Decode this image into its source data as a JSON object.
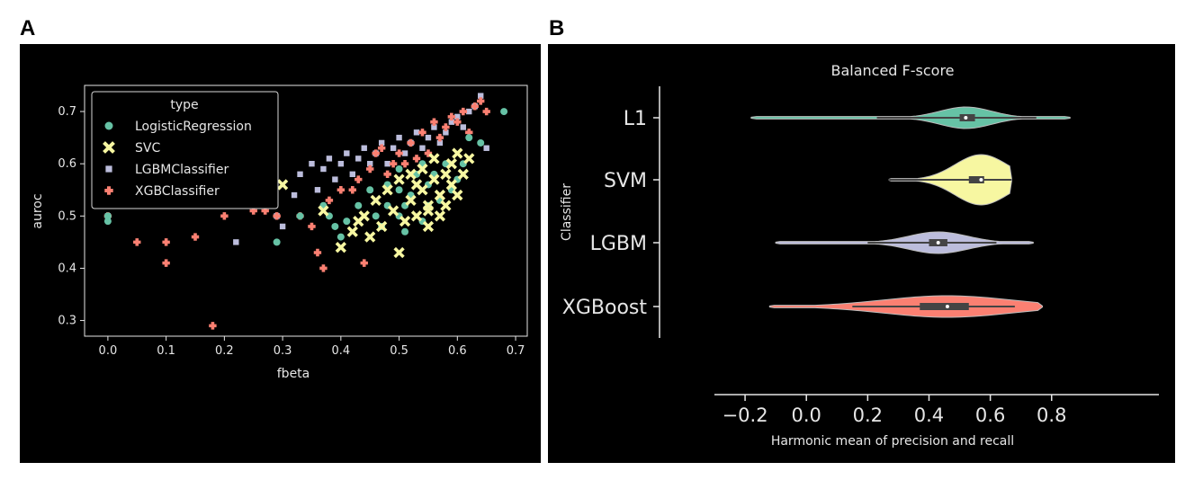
{
  "panel_labels": {
    "a": "A",
    "b": "B"
  },
  "colors": {
    "background": "#000000",
    "axis": "#e6e6e6",
    "LogisticRegression": "#66c2a5",
    "SVC": "#f7f7a1",
    "LGBMClassifier": "#bcbddc",
    "XGBClassifier": "#fb8072"
  },
  "chart_data": [
    {
      "type": "scatter",
      "xlabel": "fbeta",
      "ylabel": "auroc",
      "xlim": [
        -0.04,
        0.72
      ],
      "ylim": [
        0.27,
        0.75
      ],
      "xticks": [
        "0.0",
        "0.1",
        "0.2",
        "0.3",
        "0.4",
        "0.5",
        "0.6",
        "0.7"
      ],
      "yticks": [
        "0.3",
        "0.4",
        "0.5",
        "0.6",
        "0.7"
      ],
      "legend": {
        "title": "type",
        "position": "top-left"
      },
      "series": [
        {
          "name": "LogisticRegression",
          "marker": "circle",
          "points": [
            [
              0.0,
              0.49
            ],
            [
              0.0,
              0.5
            ],
            [
              0.06,
              0.53
            ],
            [
              0.29,
              0.45
            ],
            [
              0.33,
              0.5
            ],
            [
              0.37,
              0.52
            ],
            [
              0.38,
              0.5
            ],
            [
              0.39,
              0.48
            ],
            [
              0.4,
              0.46
            ],
            [
              0.41,
              0.49
            ],
            [
              0.43,
              0.52
            ],
            [
              0.45,
              0.55
            ],
            [
              0.46,
              0.5
            ],
            [
              0.47,
              0.48
            ],
            [
              0.48,
              0.52
            ],
            [
              0.48,
              0.56
            ],
            [
              0.5,
              0.5
            ],
            [
              0.5,
              0.55
            ],
            [
              0.5,
              0.59
            ],
            [
              0.51,
              0.47
            ],
            [
              0.51,
              0.52
            ],
            [
              0.52,
              0.54
            ],
            [
              0.53,
              0.58
            ],
            [
              0.54,
              0.49
            ],
            [
              0.54,
              0.6
            ],
            [
              0.55,
              0.52
            ],
            [
              0.55,
              0.56
            ],
            [
              0.56,
              0.58
            ],
            [
              0.57,
              0.53
            ],
            [
              0.58,
              0.6
            ],
            [
              0.59,
              0.55
            ],
            [
              0.6,
              0.57
            ],
            [
              0.61,
              0.6
            ],
            [
              0.62,
              0.65
            ],
            [
              0.64,
              0.64
            ],
            [
              0.68,
              0.7
            ]
          ]
        },
        {
          "name": "SVC",
          "marker": "x",
          "points": [
            [
              0.1,
              0.53
            ],
            [
              0.3,
              0.56
            ],
            [
              0.37,
              0.51
            ],
            [
              0.4,
              0.44
            ],
            [
              0.42,
              0.47
            ],
            [
              0.43,
              0.49
            ],
            [
              0.44,
              0.5
            ],
            [
              0.45,
              0.46
            ],
            [
              0.46,
              0.53
            ],
            [
              0.47,
              0.48
            ],
            [
              0.48,
              0.55
            ],
            [
              0.49,
              0.51
            ],
            [
              0.5,
              0.43
            ],
            [
              0.5,
              0.57
            ],
            [
              0.51,
              0.49
            ],
            [
              0.52,
              0.53
            ],
            [
              0.52,
              0.58
            ],
            [
              0.53,
              0.5
            ],
            [
              0.54,
              0.55
            ],
            [
              0.54,
              0.59
            ],
            [
              0.55,
              0.48
            ],
            [
              0.55,
              0.52
            ],
            [
              0.56,
              0.57
            ],
            [
              0.56,
              0.61
            ],
            [
              0.57,
              0.5
            ],
            [
              0.57,
              0.54
            ],
            [
              0.58,
              0.58
            ],
            [
              0.58,
              0.52
            ],
            [
              0.59,
              0.6
            ],
            [
              0.59,
              0.56
            ],
            [
              0.6,
              0.62
            ],
            [
              0.6,
              0.54
            ],
            [
              0.61,
              0.58
            ],
            [
              0.62,
              0.61
            ],
            [
              0.55,
              0.51
            ],
            [
              0.53,
              0.56
            ]
          ]
        },
        {
          "name": "LGBMClassifier",
          "marker": "square",
          "points": [
            [
              0.0,
              0.5
            ],
            [
              0.06,
              0.55
            ],
            [
              0.16,
              0.52
            ],
            [
              0.22,
              0.45
            ],
            [
              0.26,
              0.53
            ],
            [
              0.27,
              0.56
            ],
            [
              0.29,
              0.5
            ],
            [
              0.3,
              0.48
            ],
            [
              0.32,
              0.54
            ],
            [
              0.33,
              0.58
            ],
            [
              0.35,
              0.6
            ],
            [
              0.36,
              0.55
            ],
            [
              0.37,
              0.59
            ],
            [
              0.38,
              0.61
            ],
            [
              0.39,
              0.57
            ],
            [
              0.4,
              0.6
            ],
            [
              0.41,
              0.62
            ],
            [
              0.42,
              0.58
            ],
            [
              0.43,
              0.61
            ],
            [
              0.44,
              0.63
            ],
            [
              0.45,
              0.6
            ],
            [
              0.46,
              0.62
            ],
            [
              0.47,
              0.64
            ],
            [
              0.48,
              0.6
            ],
            [
              0.49,
              0.63
            ],
            [
              0.5,
              0.65
            ],
            [
              0.51,
              0.62
            ],
            [
              0.52,
              0.64
            ],
            [
              0.53,
              0.66
            ],
            [
              0.54,
              0.63
            ],
            [
              0.55,
              0.65
            ],
            [
              0.56,
              0.67
            ],
            [
              0.57,
              0.64
            ],
            [
              0.58,
              0.66
            ],
            [
              0.59,
              0.68
            ],
            [
              0.6,
              0.69
            ],
            [
              0.61,
              0.67
            ],
            [
              0.62,
              0.7
            ],
            [
              0.63,
              0.71
            ],
            [
              0.64,
              0.73
            ],
            [
              0.65,
              0.63
            ]
          ]
        },
        {
          "name": "XGBClassifier",
          "marker": "plus",
          "points": [
            [
              0.0,
              0.5
            ],
            [
              0.05,
              0.45
            ],
            [
              0.1,
              0.45
            ],
            [
              0.1,
              0.41
            ],
            [
              0.15,
              0.46
            ],
            [
              0.18,
              0.29
            ],
            [
              0.2,
              0.5
            ],
            [
              0.25,
              0.51
            ],
            [
              0.27,
              0.51
            ],
            [
              0.29,
              0.5
            ],
            [
              0.33,
              0.5
            ],
            [
              0.35,
              0.48
            ],
            [
              0.36,
              0.43
            ],
            [
              0.37,
              0.4
            ],
            [
              0.38,
              0.53
            ],
            [
              0.4,
              0.55
            ],
            [
              0.42,
              0.55
            ],
            [
              0.43,
              0.57
            ],
            [
              0.44,
              0.41
            ],
            [
              0.45,
              0.59
            ],
            [
              0.46,
              0.62
            ],
            [
              0.47,
              0.63
            ],
            [
              0.48,
              0.58
            ],
            [
              0.49,
              0.6
            ],
            [
              0.5,
              0.62
            ],
            [
              0.51,
              0.6
            ],
            [
              0.52,
              0.64
            ],
            [
              0.53,
              0.61
            ],
            [
              0.54,
              0.66
            ],
            [
              0.55,
              0.62
            ],
            [
              0.56,
              0.68
            ],
            [
              0.57,
              0.65
            ],
            [
              0.58,
              0.67
            ],
            [
              0.59,
              0.69
            ],
            [
              0.6,
              0.68
            ],
            [
              0.61,
              0.7
            ],
            [
              0.62,
              0.66
            ],
            [
              0.63,
              0.71
            ],
            [
              0.64,
              0.72
            ],
            [
              0.65,
              0.7
            ]
          ]
        }
      ]
    },
    {
      "type": "violin",
      "title": "Balanced F-score",
      "xlabel": "Harmonic mean of precision and recall",
      "ylabel": "Classifier",
      "xlim": [
        -0.3,
        1.15
      ],
      "xticks": [
        "−0.2",
        "0.0",
        "0.2",
        "0.4",
        "0.6",
        "0.8"
      ],
      "categories": [
        "L1",
        "SVM",
        "LGBM",
        "XGBoost"
      ],
      "series": [
        {
          "name": "L1",
          "min": -0.18,
          "q1": 0.5,
          "median": 0.52,
          "q3": 0.55,
          "whisker_low": 0.23,
          "whisker_high": 0.75,
          "max": 0.86,
          "color": "#66c2a5"
        },
        {
          "name": "SVM",
          "min": 0.27,
          "q1": 0.53,
          "median": 0.57,
          "q3": 0.58,
          "whisker_low": 0.27,
          "whisker_high": 0.67,
          "max": 0.67,
          "color": "#f7f7a1"
        },
        {
          "name": "LGBM",
          "min": -0.1,
          "q1": 0.4,
          "median": 0.43,
          "q3": 0.46,
          "whisker_low": 0.2,
          "whisker_high": 0.62,
          "max": 0.74,
          "color": "#bcbddc"
        },
        {
          "name": "XGBoost",
          "min": -0.12,
          "q1": 0.37,
          "median": 0.46,
          "q3": 0.53,
          "whisker_low": 0.15,
          "whisker_high": 0.68,
          "max": 0.77,
          "color": "#fb8072"
        }
      ]
    }
  ]
}
